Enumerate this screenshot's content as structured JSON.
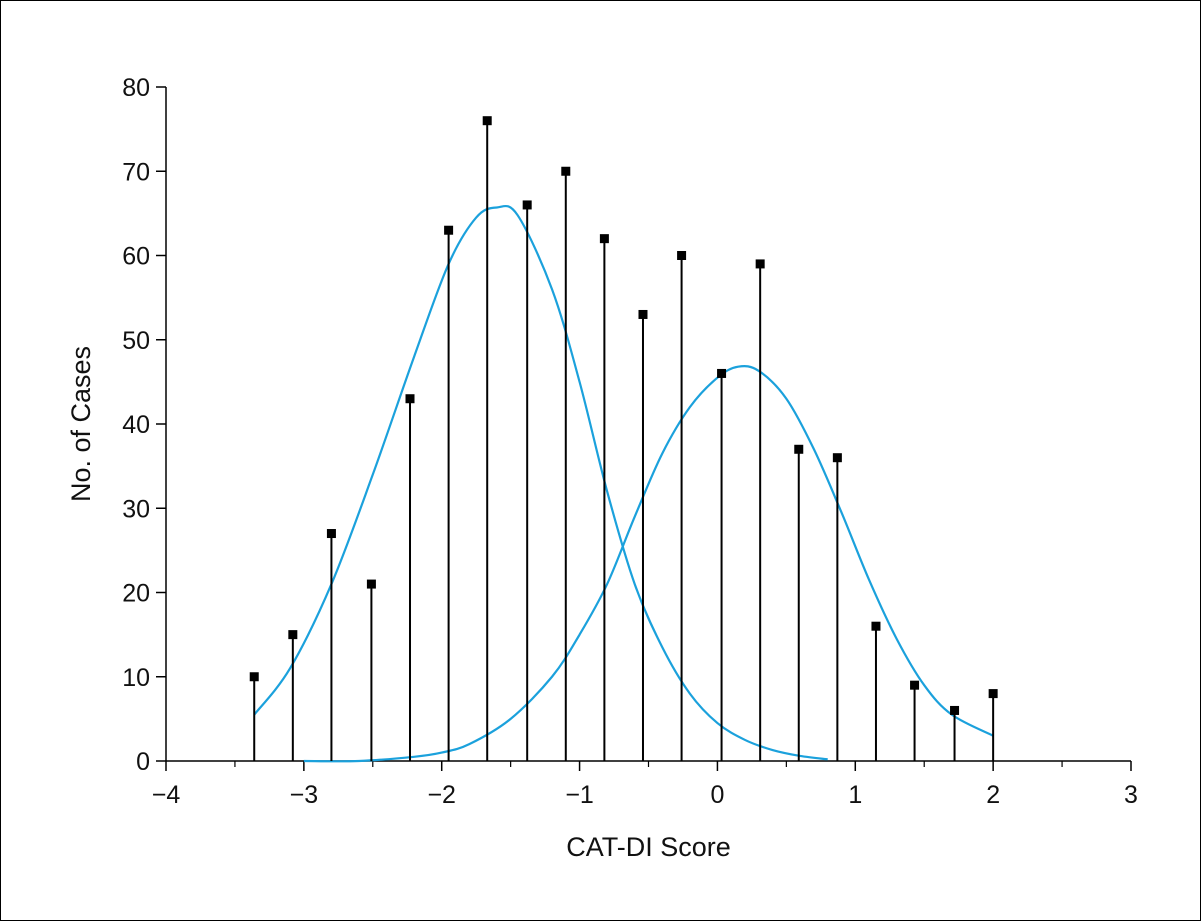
{
  "chart_data": {
    "type": "line",
    "title": "",
    "xlabel": "CAT-DI Score",
    "ylabel": "No. of Cases",
    "xlim": [
      -4,
      3
    ],
    "ylim": [
      0,
      80
    ],
    "x_ticks": [
      -4,
      -3,
      -2,
      -1,
      0,
      1,
      2,
      3
    ],
    "x_tick_labels": [
      "−4",
      "−3",
      "−2",
      "−1",
      "0",
      "1",
      "2",
      "3"
    ],
    "y_ticks": [
      0,
      10,
      20,
      30,
      40,
      50,
      60,
      70,
      80
    ],
    "y_tick_labels": [
      "0",
      "10",
      "20",
      "30",
      "40",
      "50",
      "60",
      "70",
      "80"
    ],
    "grid": false,
    "series": [
      {
        "style": "stem",
        "color": "#000000",
        "x": [
          -3.36,
          -3.08,
          -2.8,
          -2.51,
          -2.23,
          -1.95,
          -1.67,
          -1.38,
          -1.1,
          -0.82,
          -0.54,
          -0.26,
          0.03,
          0.31,
          0.59,
          0.87,
          1.15,
          1.43,
          1.72,
          2.0
        ],
        "y": [
          10,
          15,
          27,
          21,
          43,
          63,
          76,
          66,
          70,
          62,
          53,
          60,
          46,
          59,
          37,
          36,
          16,
          9,
          6,
          8
        ]
      },
      {
        "style": "curve",
        "color": "#1ba1dc",
        "x": [
          -3.36,
          -3.1,
          -2.8,
          -2.5,
          -2.2,
          -1.95,
          -1.75,
          -1.6,
          -1.45,
          -1.2,
          -1.0,
          -0.8,
          -0.6,
          -0.4,
          -0.2,
          0.0,
          0.2,
          0.4,
          0.6,
          0.8
        ],
        "y": [
          5.5,
          11,
          21,
          34,
          48,
          59,
          64.5,
          65.7,
          64.8,
          56,
          45,
          32,
          21,
          13.5,
          8,
          4.5,
          2.5,
          1.3,
          0.6,
          0.2
        ]
      },
      {
        "style": "curve",
        "color": "#1ba1dc",
        "x": [
          -3.0,
          -2.6,
          -2.2,
          -2.0,
          -1.8,
          -1.5,
          -1.2,
          -1.0,
          -0.8,
          -0.6,
          -0.4,
          -0.2,
          0.0,
          0.15,
          0.3,
          0.5,
          0.7,
          0.9,
          1.1,
          1.3,
          1.5,
          1.7,
          2.0
        ],
        "y": [
          0,
          0,
          0.5,
          1,
          2,
          5,
          10,
          15,
          21,
          29,
          36.5,
          42,
          45.5,
          46.8,
          46.3,
          43,
          37,
          29.5,
          21.5,
          14.5,
          9,
          5.5,
          3
        ]
      }
    ]
  }
}
